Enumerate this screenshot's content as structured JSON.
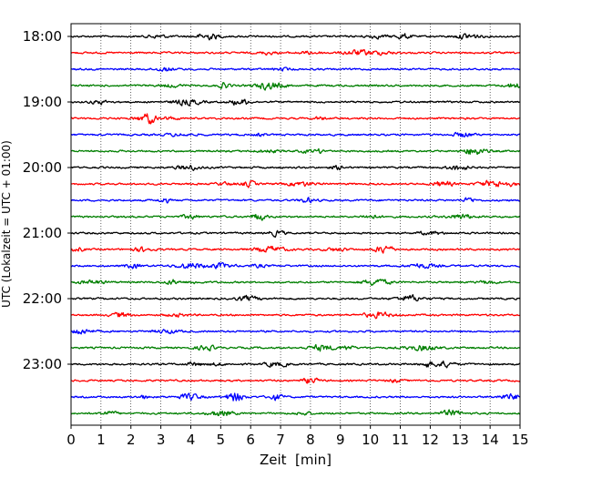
{
  "chart_data": {
    "type": "line",
    "title": "",
    "xlabel": "Zeit  [min]",
    "ylabel": "UTC (Lokalzeit = UTC + 01:00)",
    "xlim": [
      0,
      15
    ],
    "x_ticks": [
      "0",
      "1",
      "2",
      "3",
      "4",
      "5",
      "6",
      "7",
      "8",
      "9",
      "10",
      "11",
      "12",
      "13",
      "14",
      "15"
    ],
    "y_ticks": [
      "18:00",
      "19:00",
      "20:00",
      "21:00",
      "22:00",
      "23:00"
    ],
    "grid": "vertical dotted lines at each minute",
    "legend": "none",
    "trace_colors": [
      "#000000",
      "#ff0000",
      "#0000ff",
      "#007f00"
    ],
    "trace_interval_minutes": 15,
    "traces": [
      {
        "start": "18:00",
        "color": "#000000"
      },
      {
        "start": "18:15",
        "color": "#ff0000"
      },
      {
        "start": "18:30",
        "color": "#0000ff"
      },
      {
        "start": "18:45",
        "color": "#007f00"
      },
      {
        "start": "19:00",
        "color": "#000000"
      },
      {
        "start": "19:15",
        "color": "#ff0000"
      },
      {
        "start": "19:30",
        "color": "#0000ff"
      },
      {
        "start": "19:45",
        "color": "#007f00"
      },
      {
        "start": "20:00",
        "color": "#000000"
      },
      {
        "start": "20:15",
        "color": "#ff0000"
      },
      {
        "start": "20:30",
        "color": "#0000ff"
      },
      {
        "start": "20:45",
        "color": "#007f00"
      },
      {
        "start": "21:00",
        "color": "#000000"
      },
      {
        "start": "21:15",
        "color": "#ff0000"
      },
      {
        "start": "21:30",
        "color": "#0000ff"
      },
      {
        "start": "21:45",
        "color": "#007f00"
      },
      {
        "start": "22:00",
        "color": "#000000"
      },
      {
        "start": "22:15",
        "color": "#ff0000"
      },
      {
        "start": "22:30",
        "color": "#0000ff"
      },
      {
        "start": "22:45",
        "color": "#007f00"
      },
      {
        "start": "23:00",
        "color": "#000000"
      },
      {
        "start": "23:15",
        "color": "#ff0000"
      },
      {
        "start": "23:30",
        "color": "#0000ff"
      },
      {
        "start": "23:45",
        "color": "#007f00"
      }
    ]
  }
}
